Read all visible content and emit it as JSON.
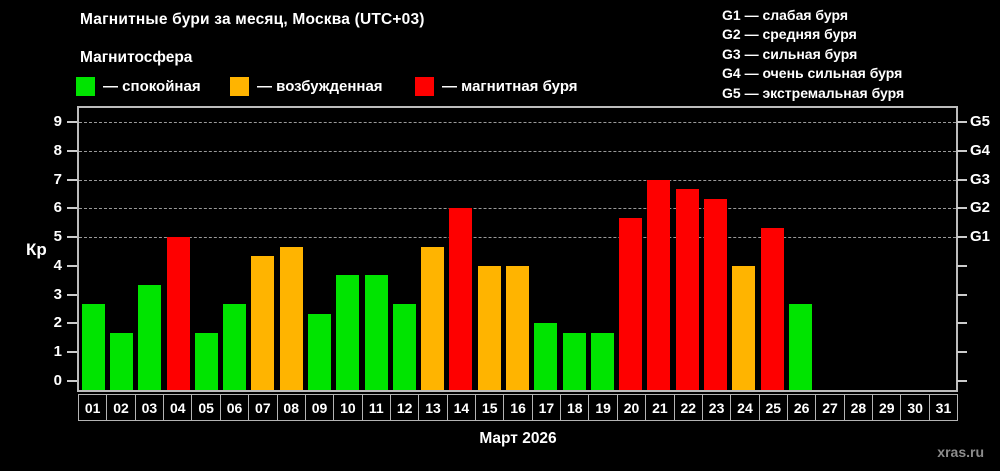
{
  "header": {
    "title": "Магнитные бури за месяц, Москва (UTC+03)",
    "subtitle": "Магнитосфера"
  },
  "legend": {
    "items": [
      {
        "label": "— спокойная",
        "color": "#00e400"
      },
      {
        "label": "— возбужденная",
        "color": "#ffb400"
      },
      {
        "label": "— магнитная буря",
        "color": "#fe0000"
      }
    ]
  },
  "storm_legend": {
    "items": [
      "G1 — слабая буря",
      "G2 — средняя буря",
      "G3 — сильная буря",
      "G4 — очень сильная буря",
      "G5 — экстремальная буря"
    ]
  },
  "footer": {
    "xlabel": "Март 2026",
    "watermark": "xras.ru"
  },
  "chart_data": {
    "type": "bar",
    "title": "Магнитные бури за месяц, Москва (UTC+03)",
    "ylabel": "Кр",
    "xlabel": "Март 2026",
    "ylim": [
      0,
      9
    ],
    "yticks": [
      0,
      1,
      2,
      3,
      4,
      5,
      6,
      7,
      8,
      9
    ],
    "gridlines_at": [
      5,
      6,
      7,
      8,
      9
    ],
    "grid": "dashed",
    "legend_position": "top-left",
    "right_axis_labels": [
      {
        "kp": 5,
        "label": "G1"
      },
      {
        "kp": 6,
        "label": "G2"
      },
      {
        "kp": 7,
        "label": "G3"
      },
      {
        "kp": 8,
        "label": "G4"
      },
      {
        "kp": 9,
        "label": "G5"
      }
    ],
    "categories": [
      "01",
      "02",
      "03",
      "04",
      "05",
      "06",
      "07",
      "08",
      "09",
      "10",
      "11",
      "12",
      "13",
      "14",
      "15",
      "16",
      "17",
      "18",
      "19",
      "20",
      "21",
      "22",
      "23",
      "24",
      "25",
      "26",
      "27",
      "28",
      "29",
      "30",
      "31"
    ],
    "values": [
      2.67,
      1.67,
      3.33,
      5.0,
      1.67,
      2.67,
      4.33,
      4.67,
      2.33,
      3.67,
      3.67,
      2.67,
      4.67,
      6.0,
      4.0,
      4.0,
      2.0,
      1.67,
      1.67,
      5.67,
      7.0,
      6.67,
      6.33,
      4.0,
      5.33,
      2.67,
      null,
      null,
      null,
      null,
      null
    ],
    "thresholds": {
      "excited_min": 4,
      "storm_min": 5
    },
    "colors": {
      "quiet": "#00e400",
      "excited": "#ffb400",
      "storm": "#fe0000"
    }
  }
}
